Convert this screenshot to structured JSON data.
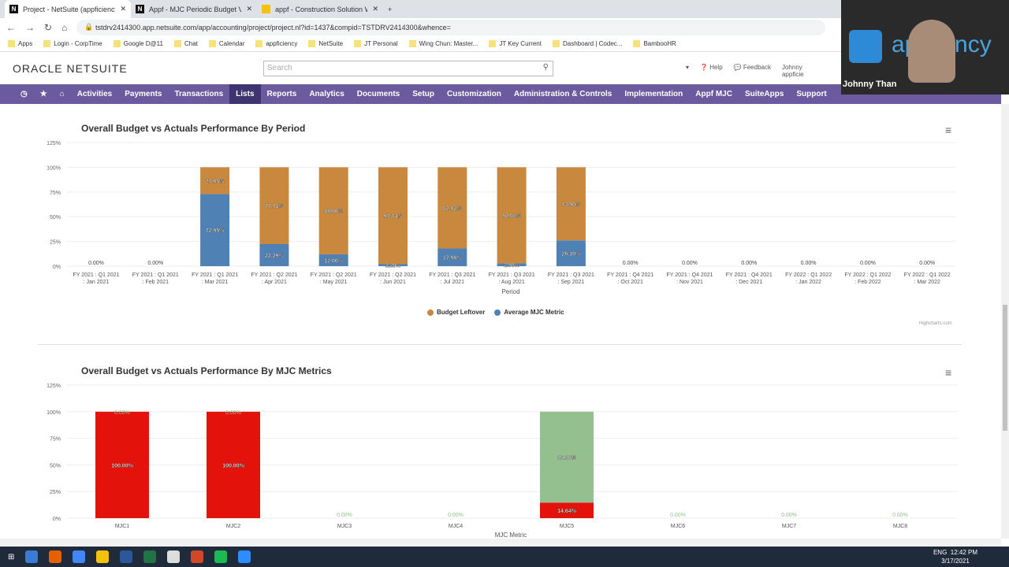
{
  "browser": {
    "tabs": [
      {
        "label": "Project - NetSuite (appficiency in",
        "icon": "N"
      },
      {
        "label": "Appf - MJC Periodic Budget Vers",
        "icon": "N"
      },
      {
        "label": "appf - Construction Solution We",
        "icon": ""
      }
    ],
    "url": "tstdrv2414300.app.netsuite.com/app/accounting/project/project.nl?id=1437&compid=TSTDRV2414300&whence=",
    "bookmarks": [
      "Apps",
      "Login - CorpTime",
      "Google D@11",
      "Chat",
      "Calendar",
      "appficiency",
      "NetSuite",
      "JT Personal",
      "Wing Chun: Master...",
      "JT Key Current",
      "Dashboard | Codec...",
      "BambooHR"
    ]
  },
  "header": {
    "logo": "ORACLE NETSUITE",
    "search_placeholder": "Search",
    "help": "Help",
    "feedback": "Feedback",
    "user": "Johnny",
    "role": "appficie"
  },
  "nav": [
    "Activities",
    "Payments",
    "Transactions",
    "Lists",
    "Reports",
    "Analytics",
    "Documents",
    "Setup",
    "Customization",
    "Administration & Controls",
    "Implementation",
    "Appf MJC",
    "SuiteApps",
    "Support"
  ],
  "webcam": {
    "name": "Johnny Than",
    "brand": "appficiency"
  },
  "chart_data": [
    {
      "type": "bar",
      "stacked": true,
      "title": "Overall Budget vs Actuals Performance By Period",
      "xlabel": "Period",
      "ylabel": "",
      "ylim": [
        0,
        125
      ],
      "yticks": [
        "0%",
        "25%",
        "50%",
        "75%",
        "100%",
        "125%"
      ],
      "categories": [
        "FY 2021 : Q1 2021 : Jan 2021",
        "FY 2021 : Q1 2021 : Feb 2021",
        "FY 2021 : Q1 2021 : Mar 2021",
        "FY 2021 : Q2 2021 : Apr 2021",
        "FY 2021 : Q2 2021 : May 2021",
        "FY 2021 : Q2 2021 : Jun 2021",
        "FY 2021 : Q3 2021 : Jul 2021",
        "FY 2021 : Q3 2021 : Aug 2021",
        "FY 2021 : Q3 2021 : Sep 2021",
        "FY 2021 : Q4 2021 : Oct 2021",
        "FY 2021 : Q4 2021 : Nov 2021",
        "FY 2021 : Q4 2021 : Dec 2021",
        "FY 2022 : Q1 2022 : Jan 2022",
        "FY 2022 : Q1 2022 : Feb 2022",
        "FY 2022 : Q1 2022 : Mar 2022"
      ],
      "series": [
        {
          "name": "Average MJC Metric",
          "color": "#4f81b4",
          "values": [
            0,
            0,
            72.95,
            22.29,
            12.0,
            2.29,
            17.98,
            2.98,
            26.1,
            0,
            0,
            0,
            0,
            0,
            0
          ]
        },
        {
          "name": "Budget Leftover",
          "color": "#c8883e",
          "values": [
            0,
            0,
            27.05,
            77.71,
            88.0,
            97.71,
            82.02,
            97.02,
            73.9,
            0,
            0,
            0,
            0,
            0,
            0
          ]
        }
      ],
      "legend": "bottom-center",
      "credits": "Highcharts.com"
    },
    {
      "type": "bar",
      "stacked": true,
      "title": "Overall Budget vs Actuals Performance By MJC Metrics",
      "xlabel": "MJC Metric",
      "ylim": [
        0,
        125
      ],
      "yticks": [
        "0%",
        "25%",
        "50%",
        "75%",
        "100%",
        "125%"
      ],
      "categories": [
        "MJC1",
        "MJC2",
        "MJC3",
        "MJC4",
        "MJC5",
        "MJC6",
        "MJC7",
        "MJC8"
      ],
      "series": [
        {
          "color": "#e3120b",
          "values": [
            100,
            100,
            0,
            0,
            14.64,
            0,
            0,
            0
          ]
        },
        {
          "color": "#93c08e",
          "values": [
            0,
            0,
            0,
            0,
            85.36,
            0,
            0,
            0
          ]
        }
      ]
    }
  ],
  "taskbar": {
    "time": "12:42 PM",
    "date": "3/17/2021",
    "lang": "ENG"
  }
}
